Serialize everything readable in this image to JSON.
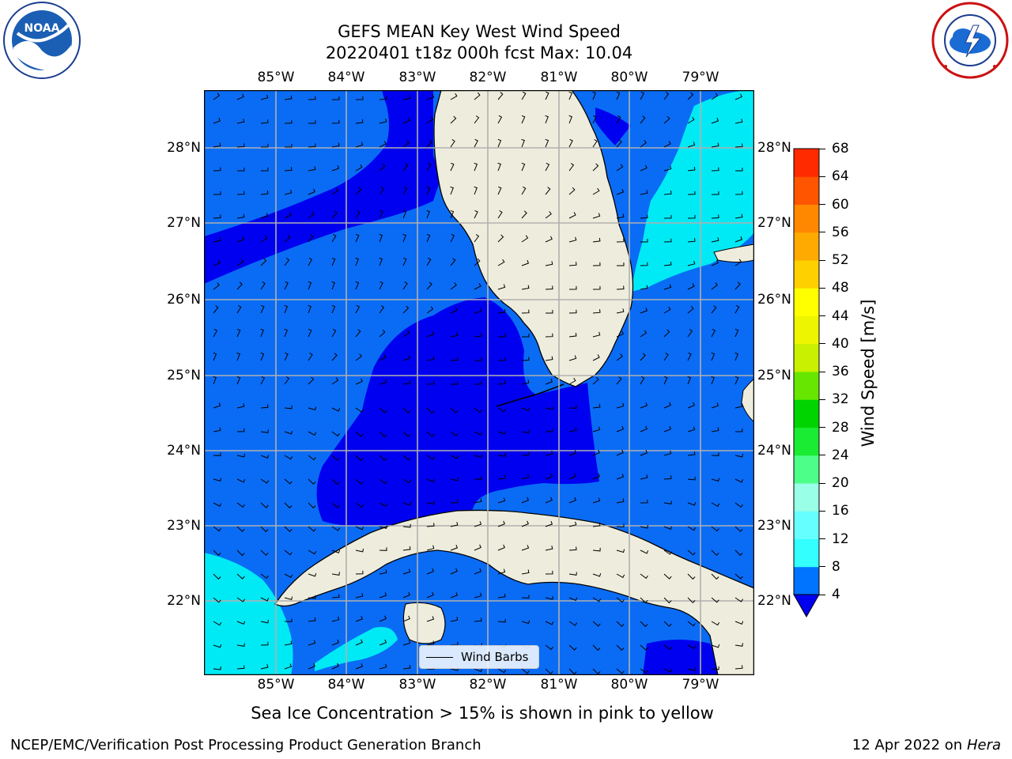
{
  "title_line1": "GEFS MEAN Key West Wind Speed",
  "title_line2": "20220401 t18z 000h fcst   Max: 10.04",
  "lon_ticks": [
    "85°W",
    "84°W",
    "83°W",
    "82°W",
    "81°W",
    "80°W",
    "79°W"
  ],
  "lat_ticks": [
    "28°N",
    "27°N",
    "26°N",
    "25°N",
    "24°N",
    "23°N",
    "22°N"
  ],
  "legend_label": "Wind Barbs",
  "colorbar": {
    "label": "Wind Speed [m/s]",
    "ticks": [
      "4",
      "8",
      "12",
      "16",
      "20",
      "24",
      "28",
      "32",
      "36",
      "40",
      "44",
      "48",
      "52",
      "56",
      "60",
      "64",
      "68"
    ],
    "colors": [
      "#0073ff",
      "#00e1ff",
      "#33ffff",
      "#66ffff",
      "#99ffe6",
      "#4dff88",
      "#1aeb33",
      "#00d400",
      "#66e600",
      "#c8f000",
      "#eef500",
      "#ffff00",
      "#ffd000",
      "#ffaa00",
      "#ff8800",
      "#ff5500",
      "#ff2a00",
      "#ff0000"
    ]
  },
  "caption": "Sea Ice Concentration > 15% is shown in pink to yellow",
  "footer_left": "NCEP/EMC/Verification Post Processing Product Generation Branch",
  "footer_date": "12 Apr 2022 on ",
  "footer_machine": "Hera",
  "logo_left": {
    "icon": "noaa-logo",
    "text": "NOAA"
  },
  "logo_right": {
    "icon": "nws-logo"
  }
}
